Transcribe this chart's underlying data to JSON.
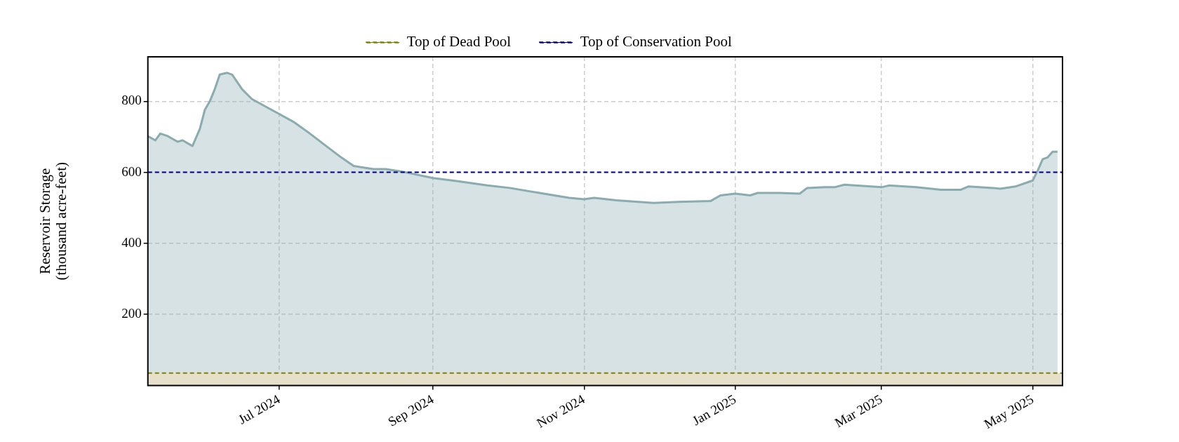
{
  "chart_data": {
    "type": "area",
    "ylabel": "Reservoir Storage\n(thousand acre-feet)",
    "x": [
      "2024-05-09",
      "2024-05-12",
      "2024-05-14",
      "2024-05-17",
      "2024-05-21",
      "2024-05-23",
      "2024-05-27",
      "2024-05-30",
      "2024-06-01",
      "2024-06-03",
      "2024-06-05",
      "2024-06-07",
      "2024-06-10",
      "2024-06-12",
      "2024-06-16",
      "2024-06-20",
      "2024-07-01",
      "2024-07-07",
      "2024-07-13",
      "2024-07-19",
      "2024-07-26",
      "2024-07-31",
      "2024-08-08",
      "2024-08-13",
      "2024-08-21",
      "2024-09-01",
      "2024-09-11",
      "2024-09-23",
      "2024-10-02",
      "2024-10-14",
      "2024-10-26",
      "2024-11-01",
      "2024-11-05",
      "2024-11-14",
      "2024-11-29",
      "2024-12-09",
      "2024-12-22",
      "2024-12-26",
      "2025-01-01",
      "2025-01-07",
      "2025-01-10",
      "2025-01-19",
      "2025-01-27",
      "2025-01-30",
      "2025-02-06",
      "2025-02-10",
      "2025-02-14",
      "2025-03-01",
      "2025-03-04",
      "2025-03-15",
      "2025-03-25",
      "2025-04-02",
      "2025-04-05",
      "2025-04-15",
      "2025-04-18",
      "2025-04-24",
      "2025-04-29",
      "2025-05-01",
      "2025-05-03",
      "2025-05-05",
      "2025-05-07",
      "2025-05-09",
      "2025-05-11"
    ],
    "series": [
      {
        "color": "#8aacb0",
        "values": [
          702,
          690,
          709,
          702,
          686,
          690,
          674,
          723,
          776,
          800,
          834,
          875,
          880,
          875,
          834,
          806,
          764,
          741,
          711,
          679,
          642,
          618,
          609,
          609,
          600,
          584,
          575,
          563,
          556,
          542,
          528,
          524,
          528,
          521,
          514,
          517,
          519,
          535,
          540,
          535,
          542,
          542,
          540,
          556,
          558,
          558,
          565,
          558,
          563,
          558,
          551,
          551,
          560,
          556,
          554,
          560,
          572,
          577,
          605,
          637,
          642,
          658,
          658
        ]
      }
    ],
    "xlim": [
      "2024-05-09",
      "2025-05-13"
    ],
    "xticks": [
      {
        "value": "2024-07-01",
        "label": "Jul 2024"
      },
      {
        "value": "2024-09-01",
        "label": "Sep 2024"
      },
      {
        "value": "2024-11-01",
        "label": "Nov 2024"
      },
      {
        "value": "2025-01-01",
        "label": "Jan 2025"
      },
      {
        "value": "2025-03-01",
        "label": "Mar 2025"
      },
      {
        "value": "2025-05-01",
        "label": "May 2025"
      }
    ],
    "ylim": [
      0,
      925
    ],
    "yticks": [
      200,
      400,
      600,
      800
    ],
    "grid": true,
    "legend": "top",
    "ref_lines": [
      {
        "axis": "y",
        "value": 35,
        "label": "Top of Dead Pool",
        "color": "#808000",
        "line_style": "dashed"
      },
      {
        "axis": "y",
        "value": 600,
        "label": "Top of Conservation Pool",
        "color": "#00008b",
        "line_style": "dashed"
      }
    ],
    "bands": [
      {
        "axis": "y",
        "from": 0,
        "to": 35,
        "color": "#e6dfca"
      }
    ]
  }
}
